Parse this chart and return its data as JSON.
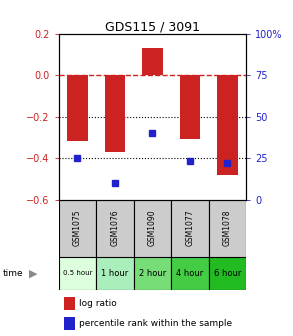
{
  "title": "GDS115 / 3091",
  "samples": [
    "GSM1075",
    "GSM1076",
    "GSM1090",
    "GSM1077",
    "GSM1078"
  ],
  "time_labels": [
    "0.5 hour",
    "1 hour",
    "2 hour",
    "4 hour",
    "6 hour"
  ],
  "log_ratios": [
    -0.32,
    -0.37,
    0.13,
    -0.31,
    -0.48
  ],
  "percentile_ranks": [
    25,
    10,
    40,
    23,
    22
  ],
  "left_ylim": [
    -0.6,
    0.2
  ],
  "right_ylim": [
    0,
    100
  ],
  "left_yticks": [
    0.2,
    0,
    -0.2,
    -0.4,
    -0.6
  ],
  "right_yticks": [
    100,
    75,
    50,
    25,
    0
  ],
  "bar_color": "#cc2222",
  "point_color": "#2222cc",
  "time_colors": [
    "#ddffdd",
    "#aaeebb",
    "#77dd77",
    "#44cc44",
    "#22bb22"
  ],
  "sample_bg": "#cccccc",
  "legend_bar_label": "log ratio",
  "legend_point_label": "percentile rank within the sample",
  "zero_line_color": "#cc2222",
  "grid_line_color": "#000000"
}
